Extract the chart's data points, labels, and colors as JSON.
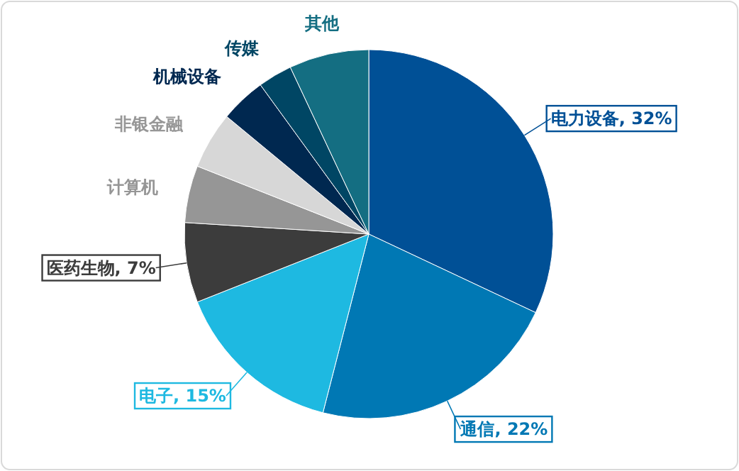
{
  "chart_data": {
    "type": "pie",
    "categories": [
      "电力设备",
      "通信",
      "电子",
      "医药生物",
      "计算机",
      "非银金融",
      "机械设备",
      "传媒",
      "其他"
    ],
    "values": [
      32,
      22,
      15,
      7,
      5,
      5,
      4,
      3,
      7
    ],
    "colors": [
      "#005096",
      "#0078b4",
      "#1eb9e1",
      "#3c3c3c",
      "#969696",
      "#d7d7d7",
      "#002850",
      "#004664",
      "#146e82"
    ],
    "value_labels": [
      "32%",
      "22%",
      "15%",
      "7%",
      null,
      null,
      null,
      null,
      null
    ],
    "legend": false
  }
}
